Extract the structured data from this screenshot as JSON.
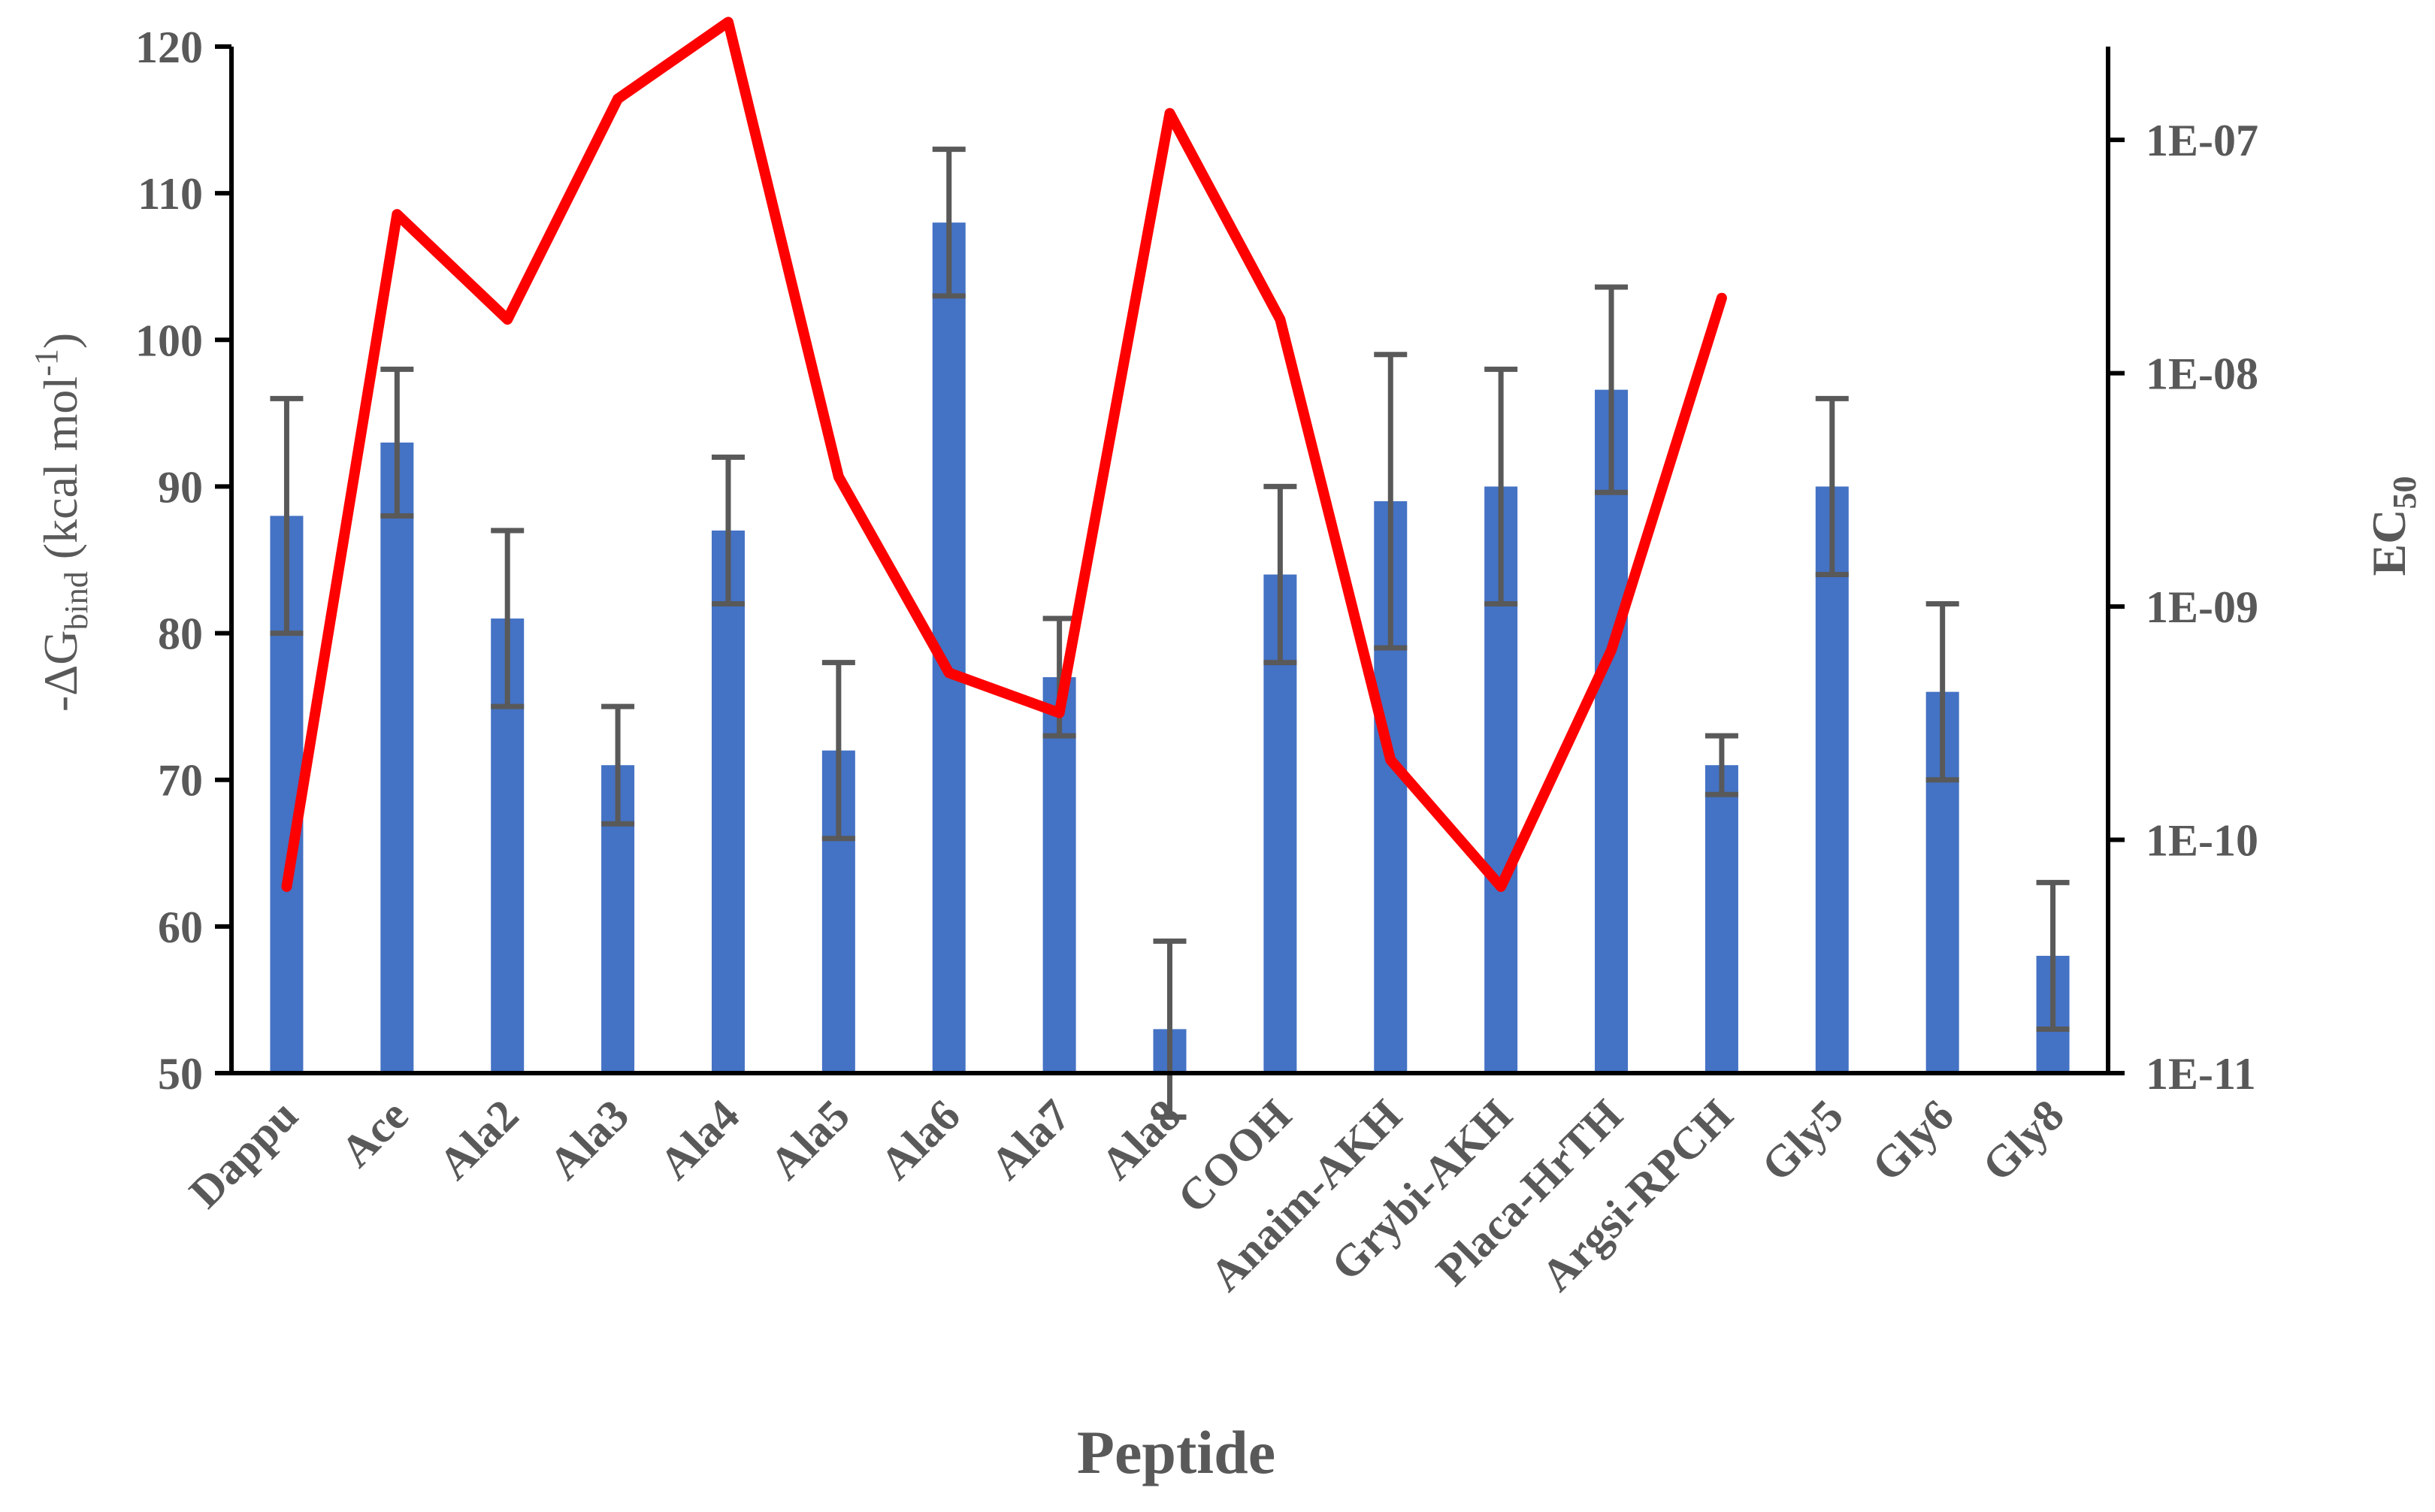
{
  "chart_data": {
    "type": "bar+line",
    "xlabel": "Peptide",
    "ylabel": {
      "prefix": "-ΔG",
      "sub": "bind",
      "mid": " (kcal mol",
      "sup": "-1",
      "suffix": ")"
    },
    "y2label": {
      "main": "EC",
      "sub": "50"
    },
    "ylim": [
      50,
      120
    ],
    "yticks": [
      50,
      60,
      70,
      80,
      90,
      100,
      110,
      120
    ],
    "y2lim_log10": [
      -11,
      -6.6
    ],
    "y2ticks": [
      {
        "value": 1e-11,
        "label": "1E-11"
      },
      {
        "value": 1e-10,
        "label": "1E-10"
      },
      {
        "value": 1e-09,
        "label": "1E-09"
      },
      {
        "value": 1e-08,
        "label": "1E-08"
      },
      {
        "value": 1e-07,
        "label": "1E-07"
      }
    ],
    "categories": [
      "Dappu",
      "Ace",
      "Ala2",
      "Ala3",
      "Ala4",
      "Ala5",
      "Ala6",
      "Ala7",
      "Ala8",
      "COOH",
      "Anaim-AKH",
      "Grybi-AKH",
      "Placa-HrTH",
      "Argsi-RPCH",
      "Gly5",
      "Gly6",
      "Gly8"
    ],
    "series": [
      {
        "name": "-ΔG bind",
        "type": "bar",
        "color": "#4472C4",
        "values": [
          88,
          93,
          81,
          71,
          87,
          72,
          108,
          77,
          53,
          84,
          89,
          90,
          96.6,
          71,
          90,
          76,
          58
        ],
        "error": [
          8,
          5,
          6,
          4,
          5,
          6,
          5,
          4,
          6,
          6,
          10,
          8,
          7,
          2,
          6,
          6,
          5
        ]
      },
      {
        "name": "EC50",
        "type": "line",
        "axis": "right",
        "color": "#FF0000",
        "values": [
          6.3e-11,
          4.8e-08,
          1.7e-08,
          1.5e-07,
          3.2e-07,
          3.6e-09,
          5.2e-10,
          3.5e-10,
          1.3e-07,
          1.7e-08,
          2.2e-10,
          6.3e-11,
          6.5e-10,
          2.1e-08,
          null,
          null,
          null
        ]
      }
    ],
    "colors": {
      "axis": "#000000",
      "text": "#595959",
      "error_bar": "#595959"
    }
  }
}
